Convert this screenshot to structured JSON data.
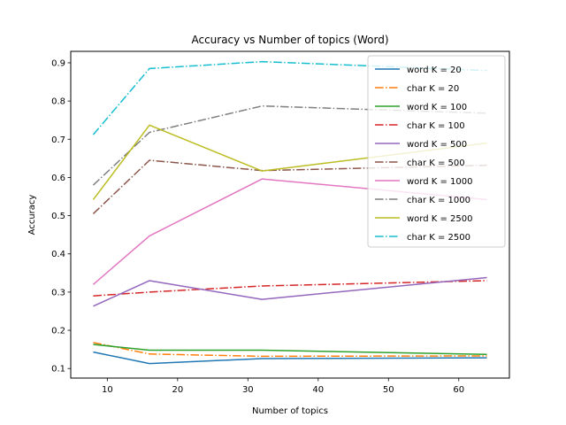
{
  "chart_data": {
    "type": "line",
    "title": "Accuracy vs Number of topics (Word)",
    "xlabel": "Number of topics",
    "ylabel": "Accuracy",
    "xlim": [
      4.8,
      67.2
    ],
    "ylim": [
      0.075,
      0.93
    ],
    "x_ticks": [
      "10",
      "20",
      "30",
      "40",
      "50",
      "60"
    ],
    "y_ticks": [
      "0.1",
      "0.2",
      "0.3",
      "0.4",
      "0.5",
      "0.6",
      "0.7",
      "0.8",
      "0.9"
    ],
    "x": [
      8,
      16,
      32,
      64
    ],
    "grid": false,
    "legend_position": "top-right",
    "series": [
      {
        "name": "word K = 20",
        "values": [
          0.143,
          0.113,
          0.126,
          0.128
        ],
        "color": "#1f77b4",
        "style": "solid"
      },
      {
        "name": "char K = 20",
        "values": [
          0.168,
          0.138,
          0.132,
          0.133
        ],
        "color": "#ff7f0e",
        "style": "dashdot"
      },
      {
        "name": "word K = 100",
        "values": [
          0.163,
          0.148,
          0.148,
          0.137
        ],
        "color": "#2ca02c",
        "style": "solid"
      },
      {
        "name": "char K = 100",
        "values": [
          0.29,
          0.3,
          0.316,
          0.33
        ],
        "color": "#d62728",
        "style": "dashdot"
      },
      {
        "name": "word K = 500",
        "values": [
          0.263,
          0.33,
          0.281,
          0.338
        ],
        "color": "#9467bd",
        "style": "solid"
      },
      {
        "name": "char K = 500",
        "values": [
          0.505,
          0.645,
          0.618,
          0.632
        ],
        "color": "#8c564b",
        "style": "dashdot"
      },
      {
        "name": "word K = 1000",
        "values": [
          0.32,
          0.447,
          0.596,
          0.542
        ],
        "color": "#e377c2",
        "style": "solid"
      },
      {
        "name": "char K = 1000",
        "values": [
          0.58,
          0.718,
          0.787,
          0.768
        ],
        "color": "#7f7f7f",
        "style": "dashdot"
      },
      {
        "name": "word K = 2500",
        "values": [
          0.542,
          0.737,
          0.617,
          0.69
        ],
        "color": "#bcbd22",
        "style": "solid"
      },
      {
        "name": "char K = 2500",
        "values": [
          0.712,
          0.885,
          0.903,
          0.88
        ],
        "color": "#17becf",
        "style": "dashdot"
      }
    ]
  }
}
